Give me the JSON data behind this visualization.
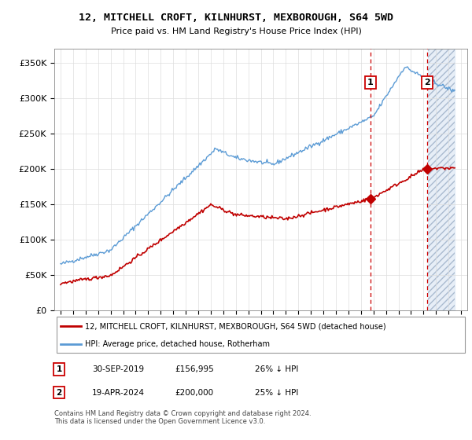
{
  "title": "12, MITCHELL CROFT, KILNHURST, MEXBOROUGH, S64 5WD",
  "subtitle": "Price paid vs. HM Land Registry's House Price Index (HPI)",
  "ylim": [
    0,
    370000
  ],
  "yticks": [
    0,
    50000,
    100000,
    150000,
    200000,
    250000,
    300000,
    350000
  ],
  "ytick_labels": [
    "£0",
    "£50K",
    "£100K",
    "£150K",
    "£200K",
    "£250K",
    "£300K",
    "£350K"
  ],
  "hpi_color": "#5b9bd5",
  "price_color": "#c00000",
  "sale1_date_x": 2019.75,
  "sale1_price": 156995,
  "sale2_date_x": 2024.29,
  "sale2_price": 200000,
  "vline_color": "#cc0000",
  "legend_label_price": "12, MITCHELL CROFT, KILNHURST, MEXBOROUGH, S64 5WD (detached house)",
  "legend_label_hpi": "HPI: Average price, detached house, Rotherham",
  "footer": "Contains HM Land Registry data © Crown copyright and database right 2024.\nThis data is licensed under the Open Government Licence v3.0.",
  "table_rows": [
    {
      "num": "1",
      "date": "30-SEP-2019",
      "price": "£156,995",
      "hpi": "26% ↓ HPI"
    },
    {
      "num": "2",
      "date": "19-APR-2024",
      "price": "£200,000",
      "hpi": "25% ↓ HPI"
    }
  ],
  "xmin": 1994.5,
  "xmax": 2027.5
}
